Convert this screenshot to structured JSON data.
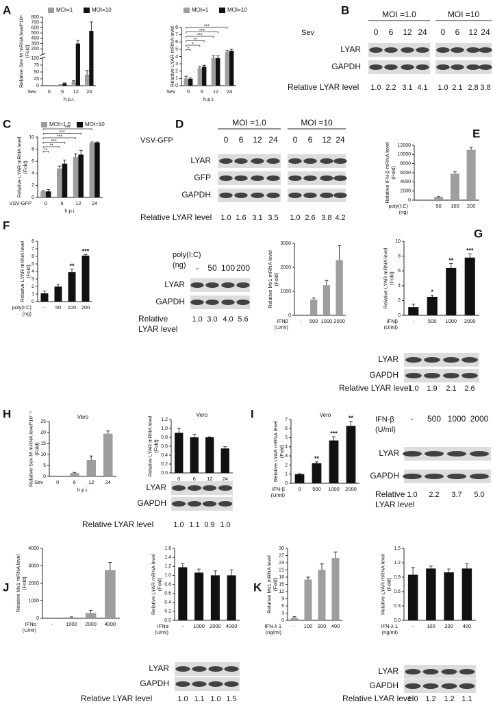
{
  "panels": [
    "A",
    "B",
    "C",
    "D",
    "E",
    "F",
    "G",
    "H",
    "I",
    "J",
    "K"
  ],
  "chart_data": [
    {
      "type": "bar",
      "ylabel": [
        "Relative Sev M mRNA level*10⁵",
        "(Fold)"
      ],
      "xlabel": "h.p.i.",
      "xlabel_left": [
        "Sev"
      ],
      "categories": [
        "0",
        "6",
        "12",
        "24"
      ],
      "series": [
        {
          "name": "MOI=1",
          "color": "#9e9e9e",
          "values": [
            0,
            2,
            15,
            40
          ],
          "errors": [
            0,
            1,
            3,
            15
          ]
        },
        {
          "name": "MOI=10",
          "color": "#111111",
          "values": [
            0,
            8,
            300,
            540
          ],
          "errors": [
            0,
            2,
            60,
            170
          ]
        }
      ],
      "ylim": [
        0,
        800
      ],
      "ysegments": [
        [
          0,
          100
        ],
        [
          100,
          800
        ]
      ],
      "yticks": [
        0,
        25,
        50,
        75,
        100,
        200,
        300,
        400,
        500,
        600,
        700,
        800
      ],
      "legend": "top"
    },
    {
      "type": "bar",
      "ylabel": [
        "Relative LYAR mRNA level"
      ],
      "xlabel": "h.p.i.",
      "xlabel_left": [
        "Sev"
      ],
      "categories": [
        "0",
        "6",
        "12",
        "24"
      ],
      "series": [
        {
          "name": "MOI=1",
          "color": "#9e9e9e",
          "values": [
            1,
            2.4,
            3.8,
            4.6
          ],
          "errors": [
            0.3,
            0.2,
            0.3,
            0.2
          ]
        },
        {
          "name": "MOI=10",
          "color": "#111111",
          "values": [
            0.95,
            2.6,
            3.8,
            4.8
          ],
          "errors": [
            0.1,
            0.2,
            0.3,
            0.2
          ]
        }
      ],
      "ylim": [
        0,
        8
      ],
      "yticks": [
        0,
        1,
        2,
        3,
        4,
        5,
        6,
        7,
        8
      ],
      "legend": "top",
      "brackets": [
        "*",
        "*",
        "**",
        "***",
        "***",
        "***"
      ]
    },
    {
      "type": "bar",
      "ylabel": [
        "Relative LYAR mRNA level",
        "(Fold)"
      ],
      "xlabel": "h.p.i.",
      "xlabel_left": [
        "VSV-GFP"
      ],
      "categories": [
        "0",
        "6",
        "12",
        "24"
      ],
      "series": [
        {
          "name": "MOI=1.0",
          "color": "#9e9e9e",
          "values": [
            1,
            4.8,
            6.7,
            9
          ],
          "errors": [
            0.1,
            0.4,
            0.5,
            0.2
          ]
        },
        {
          "name": "MOI=10",
          "color": "#111111",
          "values": [
            1,
            5.6,
            7.1,
            9.1
          ],
          "errors": [
            0.3,
            0.6,
            0.7,
            0.1
          ]
        }
      ],
      "ylim": [
        0,
        10
      ],
      "yticks": [
        0,
        2,
        4,
        6,
        8,
        10
      ],
      "legend": "top",
      "brackets": [
        "**",
        "**",
        "***",
        "***",
        "***",
        "***"
      ]
    },
    {
      "type": "bar",
      "ylabel": [
        "Relative IFN-β mRNA level",
        "(Fold)"
      ],
      "xlabel_left": [
        "poly(I:C)",
        "(ng)"
      ],
      "categories": [
        "-",
        "50",
        "100",
        "200"
      ],
      "series": [
        {
          "color": "#9e9e9e",
          "values": [
            0,
            700,
            5800,
            11000
          ],
          "errors": [
            0,
            100,
            400,
            600
          ]
        }
      ],
      "ylim": [
        0,
        12000
      ],
      "yticks": [
        0,
        2000,
        4000,
        6000,
        8000,
        10000,
        12000
      ]
    },
    {
      "type": "bar",
      "ylabel": [
        "Relative LYAR mRNA level",
        "(Fold)"
      ],
      "xlabel_left": [
        "poly(I:C)",
        "(ng)"
      ],
      "categories": [
        "-",
        "50",
        "100",
        "200"
      ],
      "series": [
        {
          "color": "#111111",
          "values": [
            1.1,
            2,
            3.9,
            6.1
          ],
          "errors": [
            0.3,
            0.3,
            0.4,
            0.15
          ]
        }
      ],
      "ylim": [
        0,
        8
      ],
      "yticks": [
        0,
        1,
        2,
        3,
        4,
        5,
        6,
        7,
        8
      ],
      "bar_labels": [
        null,
        null,
        "**",
        "***"
      ]
    },
    {
      "type": "bar",
      "ylabel": [
        "Relative Mx1 mRNA level",
        "(Fold)"
      ],
      "xlabel_left": [
        "IFNβ",
        "(U/ml)"
      ],
      "categories": [
        "-",
        "500",
        "1000",
        "2000"
      ],
      "series": [
        {
          "color": "#9e9e9e",
          "values": [
            0,
            650,
            1250,
            2300
          ],
          "errors": [
            0,
            70,
            200,
            600
          ]
        }
      ],
      "ylim": [
        0,
        3000
      ],
      "yticks": [
        0,
        1000,
        2000,
        3000
      ]
    },
    {
      "type": "bar",
      "ylabel": [
        "Relative LYAR mRNA level",
        "(Fold)"
      ],
      "xlabel_left": [
        "IFNβ",
        "(U/ml)"
      ],
      "categories": [
        "-",
        "500",
        "1000",
        "2000"
      ],
      "series": [
        {
          "color": "#111111",
          "values": [
            1.1,
            2.5,
            6.4,
            7.8
          ],
          "errors": [
            0.4,
            0.2,
            0.6,
            0.5
          ]
        }
      ],
      "ylim": [
        0,
        10
      ],
      "yticks": [
        0,
        2,
        4,
        6,
        8,
        10
      ],
      "bar_labels": [
        null,
        "*",
        "**",
        "***"
      ]
    },
    {
      "type": "bar",
      "title": "Vero",
      "ylabel": [
        "Relative Sev M mRNA level*10⁻⁴",
        "(Fold)"
      ],
      "xlabel": "h.p.i.",
      "xlabel_left": [
        "Sev"
      ],
      "categories": [
        "0",
        "6",
        "12",
        "24"
      ],
      "series": [
        {
          "color": "#9e9e9e",
          "values": [
            0,
            1.5,
            7.5,
            19.5
          ],
          "errors": [
            0,
            0.3,
            1.8,
            1.2
          ]
        }
      ],
      "ylim": [
        0,
        25
      ],
      "yticks": [
        0,
        5,
        10,
        15,
        20,
        25
      ]
    },
    {
      "type": "bar",
      "title": "Vero",
      "ylabel": [
        "Relative LYAR mRNA level",
        "(Fold)"
      ],
      "xlabel": "h.p.i.",
      "categories": [
        "0",
        "6",
        "12",
        "24"
      ],
      "series": [
        {
          "color": "#111111",
          "values": [
            0.9,
            0.8,
            0.8,
            0.55
          ],
          "errors": [
            0.1,
            0.07,
            0.01,
            0.04
          ]
        }
      ],
      "ylim": [
        0,
        1.2
      ],
      "yticks": [
        {
          "value": 0,
          "label": "0.0"
        },
        0.2,
        0.4,
        0.6,
        0.8,
        {
          "value": 1,
          "label": "1.0"
        },
        1.2
      ]
    },
    {
      "type": "bar",
      "title": "Vero",
      "ylabel": [
        "Relative LYAR mRNA level",
        "(Fold)"
      ],
      "xlabel_left": [
        "IFN-β",
        "(U/ml)"
      ],
      "categories": [
        "0",
        "500",
        "1000",
        "2000"
      ],
      "series": [
        {
          "color": "#111111",
          "values": [
            1,
            2.2,
            4.7,
            6.3
          ],
          "errors": [
            0.05,
            0.15,
            0.4,
            0.5
          ]
        }
      ],
      "ylim": [
        0,
        7
      ],
      "yticks": [
        0,
        1,
        2,
        3,
        4,
        5,
        6,
        7
      ],
      "bar_labels": [
        null,
        "**",
        "***",
        "**"
      ]
    },
    {
      "type": "bar",
      "ylabel": [
        "Relative Mx1 mRNA level",
        "(Fold)"
      ],
      "xlabel_left": [
        "IFNα",
        "(U/ml)"
      ],
      "categories": [
        "-",
        "1000",
        "2000",
        "4000"
      ],
      "series": [
        {
          "color": "#9e9e9e",
          "values": [
            0,
            50,
            300,
            2750
          ],
          "errors": [
            0,
            30,
            150,
            450
          ]
        }
      ],
      "ylim": [
        0,
        4000
      ],
      "yticks": [
        0,
        1000,
        2000,
        3000,
        4000
      ]
    },
    {
      "type": "bar",
      "ylabel": [
        "Relative LYAR mRNA level",
        "(Fold)"
      ],
      "xlabel_left": [
        "IFNα",
        "(U/ml)"
      ],
      "categories": [
        "-",
        "1000",
        "2000",
        "4000"
      ],
      "series": [
        {
          "color": "#111111",
          "values": [
            1.18,
            1.06,
            1.0,
            1.0
          ],
          "errors": [
            0.08,
            0.08,
            0.1,
            0.12
          ]
        }
      ],
      "ylim": [
        0,
        1.6
      ],
      "yticks": [
        {
          "value": 0,
          "label": "0.0"
        },
        0.2,
        0.4,
        0.6,
        0.8,
        {
          "value": 1,
          "label": "1.0"
        },
        1.2,
        1.4,
        1.6
      ]
    },
    {
      "type": "bar",
      "ylabel": [
        "Relative Mx1 mRNA level",
        "(Fold)"
      ],
      "xlabel_left": [
        "IFN-λ 1",
        "(ng/ml)"
      ],
      "categories": [
        "-",
        "100",
        "200",
        "400"
      ],
      "series": [
        {
          "color": "#9e9e9e",
          "values": [
            1,
            17,
            21,
            26
          ],
          "errors": [
            0.5,
            1,
            2.5,
            2.5
          ]
        }
      ],
      "ylim": [
        0,
        30
      ],
      "yticks": [
        0,
        3,
        6,
        9,
        12,
        15,
        18,
        21,
        24,
        27,
        30
      ]
    },
    {
      "type": "bar",
      "ylabel": [
        "Relative LYAR mRNA level",
        "(Fold)"
      ],
      "xlabel_left": [
        "IFN-λ 1",
        "(ng/ml)"
      ],
      "categories": [
        "-",
        "100",
        "200",
        "400"
      ],
      "series": [
        {
          "color": "#111111",
          "values": [
            0.95,
            1.08,
            1.0,
            1.08
          ],
          "errors": [
            0.15,
            0.05,
            0.07,
            0.1
          ]
        }
      ],
      "ylim": [
        0,
        1.5
      ],
      "yticks": [
        {
          "value": 0,
          "label": "0.0"
        },
        0.3,
        0.6,
        0.9,
        1.2,
        1.5
      ]
    }
  ],
  "blots": [
    {
      "header": [
        "Sev"
      ],
      "groups": [
        "MOI =1.0",
        "MOI =10"
      ],
      "lanes": [
        "0",
        "6",
        "12",
        "24",
        "0",
        "6",
        "12",
        "24"
      ],
      "rows": [
        "LYAR",
        "GAPDH"
      ],
      "level_label": [
        "Relative LYAR level"
      ],
      "levels": [
        "1.0",
        "2.2",
        "3.1",
        "4.1",
        "1.0",
        "2.1",
        "2.8",
        "3.8"
      ]
    },
    {
      "header": [
        "VSV-GFP"
      ],
      "groups": [
        "MOI =1.0",
        "MOI =10"
      ],
      "lanes": [
        "0",
        "6",
        "12",
        "24",
        "0",
        "6",
        "12",
        "24"
      ],
      "rows": [
        "LYAR",
        "GFP",
        "GAPDH"
      ],
      "level_label": [
        "Relative LYAR level"
      ],
      "levels": [
        "1.0",
        "1.6",
        "3.1",
        "3.5",
        "1.0",
        "2.6",
        "3.8",
        "4.2"
      ]
    },
    {
      "header": [
        "poly(I:C)",
        "(ng)"
      ],
      "lanes": [
        "-",
        "50",
        "100",
        "200"
      ],
      "rows": [
        "LYAR",
        "GAPDH"
      ],
      "level_label": [
        "Relative",
        "LYAR level"
      ],
      "levels": [
        "1.0",
        "3.0",
        "4.0",
        "5.6"
      ]
    },
    {
      "rows": [
        "LYAR",
        "GAPDH"
      ],
      "level_label": [
        "Relative LYAR level"
      ],
      "levels": [
        "1.0",
        "1.9",
        "2.1",
        "2.6"
      ]
    },
    {
      "rows": [
        "LYAR",
        "GAPDH"
      ],
      "level_label": [
        "Relative LYAR level"
      ],
      "levels": [
        "1.0",
        "1.1",
        "0.9",
        "1.0"
      ]
    },
    {
      "header": [
        "IFN-β",
        "(U/ml)"
      ],
      "lanes": [
        "-",
        "500",
        "1000",
        "2000"
      ],
      "rows": [
        "LYAR",
        "GAPDH"
      ],
      "level_label": [
        "Relative",
        "LYAR level"
      ],
      "levels": [
        "1.0",
        "2.2",
        "3.7",
        "5.0"
      ]
    },
    {
      "rows": [
        "LYAR",
        "GAPDH"
      ],
      "level_label": [
        "Relative LYAR level"
      ],
      "levels": [
        "1.0",
        "1.1",
        "1.0",
        "1.5"
      ]
    },
    {
      "rows": [
        "LYAR",
        "GAPDH"
      ],
      "level_label": [
        "Relative LYAR level"
      ],
      "levels": [
        "1.0",
        "1.2",
        "1.2",
        "1.1"
      ]
    }
  ]
}
